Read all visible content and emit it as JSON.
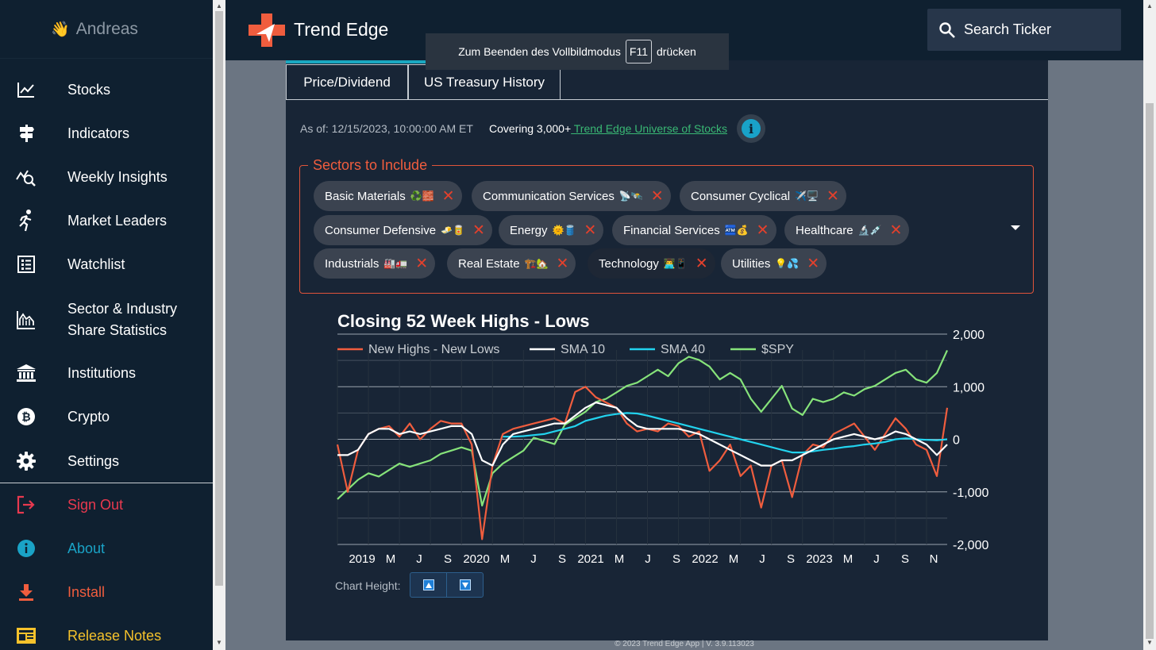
{
  "user": {
    "greeting_emoji": "👋",
    "name": "Andreas"
  },
  "nav": [
    {
      "label": "Stocks",
      "icon": "chart-line-icon",
      "color": "#ffffff"
    },
    {
      "label": "Indicators",
      "icon": "signpost-icon",
      "color": "#ffffff"
    },
    {
      "label": "Weekly Insights",
      "icon": "chart-search-icon",
      "color": "#ffffff"
    },
    {
      "label": "Market Leaders",
      "icon": "runner-icon",
      "color": "#ffffff"
    },
    {
      "label": "Watchlist",
      "icon": "list-box-icon",
      "color": "#ffffff"
    },
    {
      "label": "Sector & Industry Share Statistics",
      "label_line1": "Sector & Industry",
      "label_line2": "Share Statistics",
      "icon": "area-chart-icon",
      "color": "#ffffff"
    },
    {
      "label": "Institutions",
      "icon": "bank-icon",
      "color": "#ffffff"
    },
    {
      "label": "Crypto",
      "icon": "bitcoin-icon",
      "color": "#ffffff"
    },
    {
      "label": "Settings",
      "icon": "gear-icon",
      "color": "#ffffff"
    },
    {
      "label": "Sign Out",
      "icon": "sign-out-icon",
      "color": "#e8394f"
    },
    {
      "label": "About",
      "icon": "info-icon",
      "color": "#1aa3c6"
    },
    {
      "label": "Install",
      "icon": "download-icon",
      "color": "#f05d3e"
    },
    {
      "label": "Release Notes",
      "icon": "newspaper-icon",
      "color": "#f6c22b"
    }
  ],
  "brand": {
    "name": "Trend Edge"
  },
  "search": {
    "placeholder": "Search Ticker"
  },
  "fullscreen_toast": {
    "before": "Zum Beenden des Vollbildmodus",
    "key": "F11",
    "after": "drücken"
  },
  "tabs": [
    {
      "label": "Price/Dividend"
    },
    {
      "label": "US Treasury History"
    }
  ],
  "as_of": "As of: 12/15/2023, 10:00:00 AM ET",
  "covering": {
    "prefix": "Covering 3,000+",
    "link": " Trend Edge Universe of Stocks"
  },
  "sectors": {
    "legend": "Sectors to Include",
    "chips": [
      {
        "label": "Basic Materials",
        "emoji": "♻️🧱"
      },
      {
        "label": "Communication Services",
        "emoji": "📡🛰️"
      },
      {
        "label": "Consumer Cyclical",
        "emoji": "✈️🖥️"
      },
      {
        "label": "Consumer Defensive",
        "emoji": "🧈🥫"
      },
      {
        "label": "Energy",
        "emoji": "🌞🛢️"
      },
      {
        "label": "Financial Services",
        "emoji": "🏧💰"
      },
      {
        "label": "Healthcare",
        "emoji": "🔬💉"
      },
      {
        "label": "Industrials",
        "emoji": "🏭🚛"
      },
      {
        "label": "Real Estate",
        "emoji": "🏗️🏡"
      },
      {
        "label": "Technology",
        "emoji": "👨‍💻📱"
      },
      {
        "label": "Utilities",
        "emoji": "💡💦"
      }
    ]
  },
  "chart_data": {
    "type": "line",
    "title": "Closing 52 Week Highs - Lows",
    "x": [
      "2019-01",
      "2019-02",
      "2019-03",
      "2019-04",
      "2019-05",
      "2019-06",
      "2019-07",
      "2019-08",
      "2019-09",
      "2019-10",
      "2019-11",
      "2019-12",
      "2020-01",
      "2020-02",
      "2020-03",
      "2020-04",
      "2020-05",
      "2020-06",
      "2020-07",
      "2020-08",
      "2020-09",
      "2020-10",
      "2020-11",
      "2020-12",
      "2021-01",
      "2021-02",
      "2021-03",
      "2021-04",
      "2021-05",
      "2021-06",
      "2021-07",
      "2021-08",
      "2021-09",
      "2021-10",
      "2021-11",
      "2021-12",
      "2022-01",
      "2022-02",
      "2022-03",
      "2022-04",
      "2022-05",
      "2022-06",
      "2022-07",
      "2022-08",
      "2022-09",
      "2022-10",
      "2022-11",
      "2022-12",
      "2023-01",
      "2023-02",
      "2023-03",
      "2023-04",
      "2023-05",
      "2023-06",
      "2023-07",
      "2023-08",
      "2023-09",
      "2023-10",
      "2023-11",
      "2023-12"
    ],
    "x_tick_labels": [
      "2019",
      "M",
      "J",
      "S",
      "2020",
      "M",
      "J",
      "S",
      "2021",
      "M",
      "J",
      "S",
      "2022",
      "M",
      "J",
      "S",
      "2023",
      "M",
      "J",
      "S",
      "N"
    ],
    "series": [
      {
        "name": "New Highs - New Lows",
        "color": "#f05d3e",
        "axis": "right",
        "values": [
          -100,
          -1000,
          -200,
          100,
          200,
          250,
          50,
          300,
          0,
          200,
          350,
          300,
          300,
          -100,
          -1900,
          -500,
          100,
          200,
          250,
          300,
          350,
          400,
          300,
          900,
          1000,
          800,
          700,
          600,
          300,
          150,
          200,
          150,
          300,
          250,
          50,
          150,
          -600,
          -400,
          -100,
          -700,
          -500,
          -1300,
          -500,
          -400,
          -1100,
          -300,
          -100,
          -150,
          100,
          200,
          300,
          50,
          -200,
          100,
          400,
          200,
          -100,
          -200,
          -700,
          600
        ]
      },
      {
        "name": "SMA 10",
        "color": "#ffffff",
        "axis": "right",
        "values": [
          -300,
          -300,
          -200,
          100,
          200,
          200,
          100,
          150,
          100,
          150,
          200,
          250,
          250,
          100,
          -400,
          -500,
          -100,
          100,
          150,
          200,
          250,
          300,
          300,
          450,
          600,
          700,
          650,
          600,
          400,
          250,
          200,
          200,
          200,
          200,
          150,
          100,
          0,
          -100,
          -200,
          -300,
          -400,
          -500,
          -500,
          -400,
          -400,
          -300,
          -200,
          -100,
          0,
          50,
          100,
          50,
          0,
          50,
          150,
          100,
          0,
          -100,
          -300,
          -100
        ]
      },
      {
        "name": "SMA 40",
        "color": "#22d3ee",
        "axis": "right",
        "values": [
          null,
          null,
          null,
          null,
          null,
          null,
          null,
          null,
          null,
          null,
          null,
          null,
          null,
          null,
          null,
          null,
          50,
          50,
          60,
          80,
          100,
          150,
          200,
          250,
          350,
          400,
          450,
          480,
          500,
          490,
          450,
          400,
          350,
          300,
          250,
          200,
          150,
          100,
          50,
          0,
          -50,
          -100,
          -150,
          -200,
          -250,
          -250,
          -230,
          -200,
          -180,
          -150,
          -130,
          -100,
          -80,
          -50,
          0,
          20,
          0,
          -10,
          -20,
          0
        ]
      },
      {
        "name": "$SPY",
        "color": "#86e37a",
        "axis": "left",
        "values": [
          245,
          260,
          275,
          285,
          280,
          290,
          300,
          295,
          300,
          305,
          315,
          320,
          325,
          320,
          235,
          285,
          300,
          310,
          320,
          340,
          335,
          330,
          360,
          370,
          380,
          395,
          400,
          410,
          420,
          425,
          435,
          445,
          435,
          455,
          465,
          460,
          450,
          430,
          440,
          430,
          400,
          380,
          400,
          420,
          385,
          375,
          400,
          395,
          400,
          410,
          405,
          415,
          420,
          430,
          440,
          445,
          430,
          425,
          440,
          475
        ]
      }
    ],
    "right_axis": {
      "ticks": [
        "2,000",
        "1,000",
        "0",
        "-1,000",
        "-2,000"
      ],
      "range": [
        -2000,
        2000
      ]
    },
    "left_axis_range": [
      175,
      500
    ],
    "legend": [
      "New Highs - New Lows",
      "SMA 10",
      "SMA 40",
      "$SPY"
    ]
  },
  "chart_height": {
    "label": "Chart Height:"
  },
  "footer": "© 2023 Trend Edge App | V. 3.9.113023"
}
